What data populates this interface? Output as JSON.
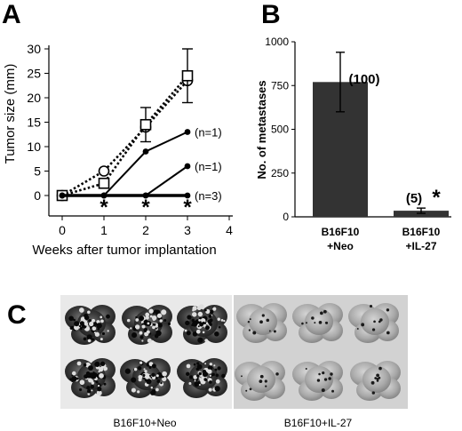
{
  "panels": {
    "a": "A",
    "b": "B",
    "c": "C"
  },
  "chart_data": [
    {
      "panel": "A",
      "type": "line",
      "xlabel": "Weeks after tumor implantation",
      "ylabel": "Tumor size (mm)",
      "xlim": [
        0,
        4
      ],
      "ylim": [
        0,
        30
      ],
      "xticks": [
        0,
        1,
        2,
        3,
        4
      ],
      "yticks": [
        0,
        5,
        10,
        15,
        20,
        25,
        30
      ],
      "grid": false,
      "series": [
        {
          "marker": "open-square",
          "line": "dotted",
          "x": [
            0,
            1,
            2,
            3
          ],
          "y": [
            0,
            2.5,
            14.5,
            24.5
          ],
          "error": [
            null,
            null,
            3.5,
            5.5
          ]
        },
        {
          "marker": "open-circle",
          "line": "dotted",
          "x": [
            0,
            1,
            2,
            3
          ],
          "y": [
            0,
            5,
            14,
            23.5
          ]
        },
        {
          "marker": "filled-circle",
          "line": "solid",
          "x": [
            0,
            1,
            2,
            3
          ],
          "y": [
            0,
            0,
            9,
            13
          ],
          "label": "(n=1)"
        },
        {
          "marker": "filled-circle",
          "line": "solid",
          "x": [
            0,
            1,
            2,
            3
          ],
          "y": [
            0,
            0,
            0,
            6
          ],
          "label": "(n=1)"
        },
        {
          "marker": "filled-circle",
          "line": "solid-thick",
          "x": [
            0,
            1,
            2,
            3
          ],
          "y": [
            0,
            0,
            0,
            0
          ],
          "label": "(n=3)"
        }
      ],
      "significance": {
        "symbol": "*",
        "x": [
          1,
          2,
          3
        ]
      }
    },
    {
      "panel": "B",
      "type": "bar",
      "ylabel": "No. of metastases",
      "ylim": [
        0,
        1000
      ],
      "yticks": [
        0,
        250,
        500,
        750,
        1000
      ],
      "categories": [
        {
          "line1": "B16F10",
          "line2": "+Neo"
        },
        {
          "line1": "B16F10",
          "line2": "+IL-27"
        }
      ],
      "values": [
        770,
        35
      ],
      "errors": [
        170,
        15
      ],
      "bar_labels": [
        "(100)",
        "(5)"
      ],
      "significance": [
        null,
        "*"
      ],
      "bar_color": "#333333"
    }
  ],
  "photos": {
    "left_caption": "B16F10+Neo",
    "right_caption": "B16F10+IL-27"
  }
}
